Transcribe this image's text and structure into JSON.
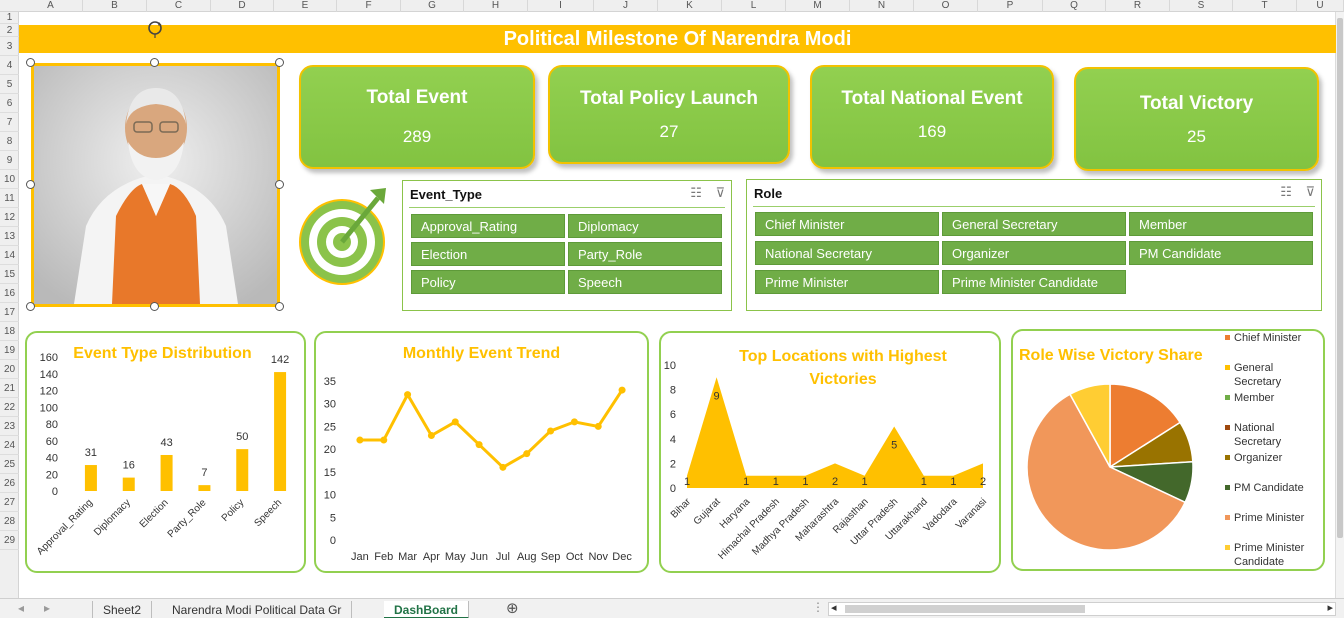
{
  "columns": [
    "A",
    "B",
    "C",
    "D",
    "E",
    "F",
    "G",
    "H",
    "I",
    "J",
    "K",
    "L",
    "M",
    "N",
    "O",
    "P",
    "Q",
    "R",
    "S",
    "T",
    "U"
  ],
  "rows": [
    "1",
    "2",
    "3",
    "4",
    "5",
    "6",
    "7",
    "8",
    "9",
    "10",
    "11",
    "12",
    "13",
    "14",
    "15",
    "16",
    "17",
    "18",
    "19",
    "20",
    "21",
    "22",
    "23",
    "24",
    "25",
    "26",
    "27",
    "28",
    "29"
  ],
  "title": "Political Milestone Of Narendra Modi",
  "kpis": [
    {
      "label": "Total Event",
      "value": "289"
    },
    {
      "label": "Total Policy Launch",
      "value": "27"
    },
    {
      "label": "Total National Event",
      "value": "169"
    },
    {
      "label": "Total Victory",
      "value": "25"
    }
  ],
  "slicers": {
    "event_type": {
      "header": "Event_Type",
      "items": [
        "Approval_Rating",
        "Diplomacy",
        "Election",
        "Party_Role",
        "Policy",
        "Speech"
      ]
    },
    "role": {
      "header": "Role",
      "items": [
        "Chief Minister",
        "General Secretary",
        "Member",
        "National Secretary",
        "Organizer",
        "PM Candidate",
        "Prime Minister",
        "Prime Minister Candidate"
      ]
    }
  },
  "chart_data": [
    {
      "type": "bar",
      "title": "Event Type Distribution",
      "categories": [
        "Approval_Rating",
        "Diplomacy",
        "Election",
        "Party_Role",
        "Policy",
        "Speech"
      ],
      "values": [
        31,
        16,
        43,
        7,
        50,
        142
      ],
      "ylim": [
        0,
        160
      ],
      "yticks": [
        "160",
        "140",
        "120",
        "100",
        "80",
        "60",
        "40",
        "20",
        "0"
      ],
      "color": "#ffc000"
    },
    {
      "type": "line",
      "title": "Monthly Event Trend",
      "categories": [
        "Jan",
        "Feb",
        "Mar",
        "Apr",
        "May",
        "Jun",
        "Jul",
        "Aug",
        "Sep",
        "Oct",
        "Nov",
        "Dec"
      ],
      "values": [
        22,
        22,
        32,
        23,
        26,
        21,
        16,
        19,
        24,
        26,
        25,
        33
      ],
      "ylim": [
        0,
        35
      ],
      "yticks": [
        "35",
        "30",
        "25",
        "20",
        "15",
        "10",
        "5",
        "0"
      ],
      "color": "#ffc000"
    },
    {
      "type": "area",
      "title": "Top Locations with Highest Victories",
      "categories": [
        "Bihar",
        "Gujarat",
        "Haryana",
        "Himachal Pradesh",
        "Madhya Pradesh",
        "Maharashtra",
        "Rajasthan",
        "Uttar Pradesh",
        "Uttarakhand",
        "Vadodara",
        "Varanasi"
      ],
      "values": [
        1,
        9,
        1,
        1,
        1,
        2,
        1,
        5,
        1,
        1,
        2
      ],
      "labels": [
        "1",
        "9",
        "1",
        "1",
        "1",
        "2",
        "1",
        "5",
        "1",
        "1",
        "2"
      ],
      "ylim": [
        0,
        10
      ],
      "yticks": [
        "10",
        "8",
        "6",
        "4",
        "2",
        "0"
      ],
      "color": "#ffc000"
    },
    {
      "type": "pie",
      "title": "Role Wise Victory Share",
      "categories": [
        "Chief Minister",
        "General Secretary",
        "Member",
        "National Secretary",
        "Organizer",
        "PM Candidate",
        "Prime Minister",
        "Prime Minister Candidate"
      ],
      "legend_lines": [
        [
          "Chief Minister"
        ],
        [
          "General",
          "Secretary"
        ],
        [
          "Member"
        ],
        [
          "National",
          "Secretary"
        ],
        [
          "Organizer"
        ],
        [
          "PM Candidate"
        ],
        [
          "Prime Minister"
        ],
        [
          "Prime Minister",
          "Candidate"
        ]
      ],
      "values": [
        4,
        0,
        0,
        0,
        2,
        2,
        15,
        2
      ],
      "colors": [
        "#ed7d31",
        "#ffc000",
        "#70ad47",
        "#9e480e",
        "#997300",
        "#43682b",
        "#f1975a",
        "#ffcd33"
      ],
      "legend_position": "right"
    }
  ],
  "sheet_tabs": [
    "Sheet2",
    "Narendra Modi Political Data Gr",
    "DashBoard"
  ],
  "active_tab": "DashBoard",
  "colors": {
    "accent": "#ffc000",
    "card_green": "#92d050",
    "slicer_green": "#70ad47"
  }
}
